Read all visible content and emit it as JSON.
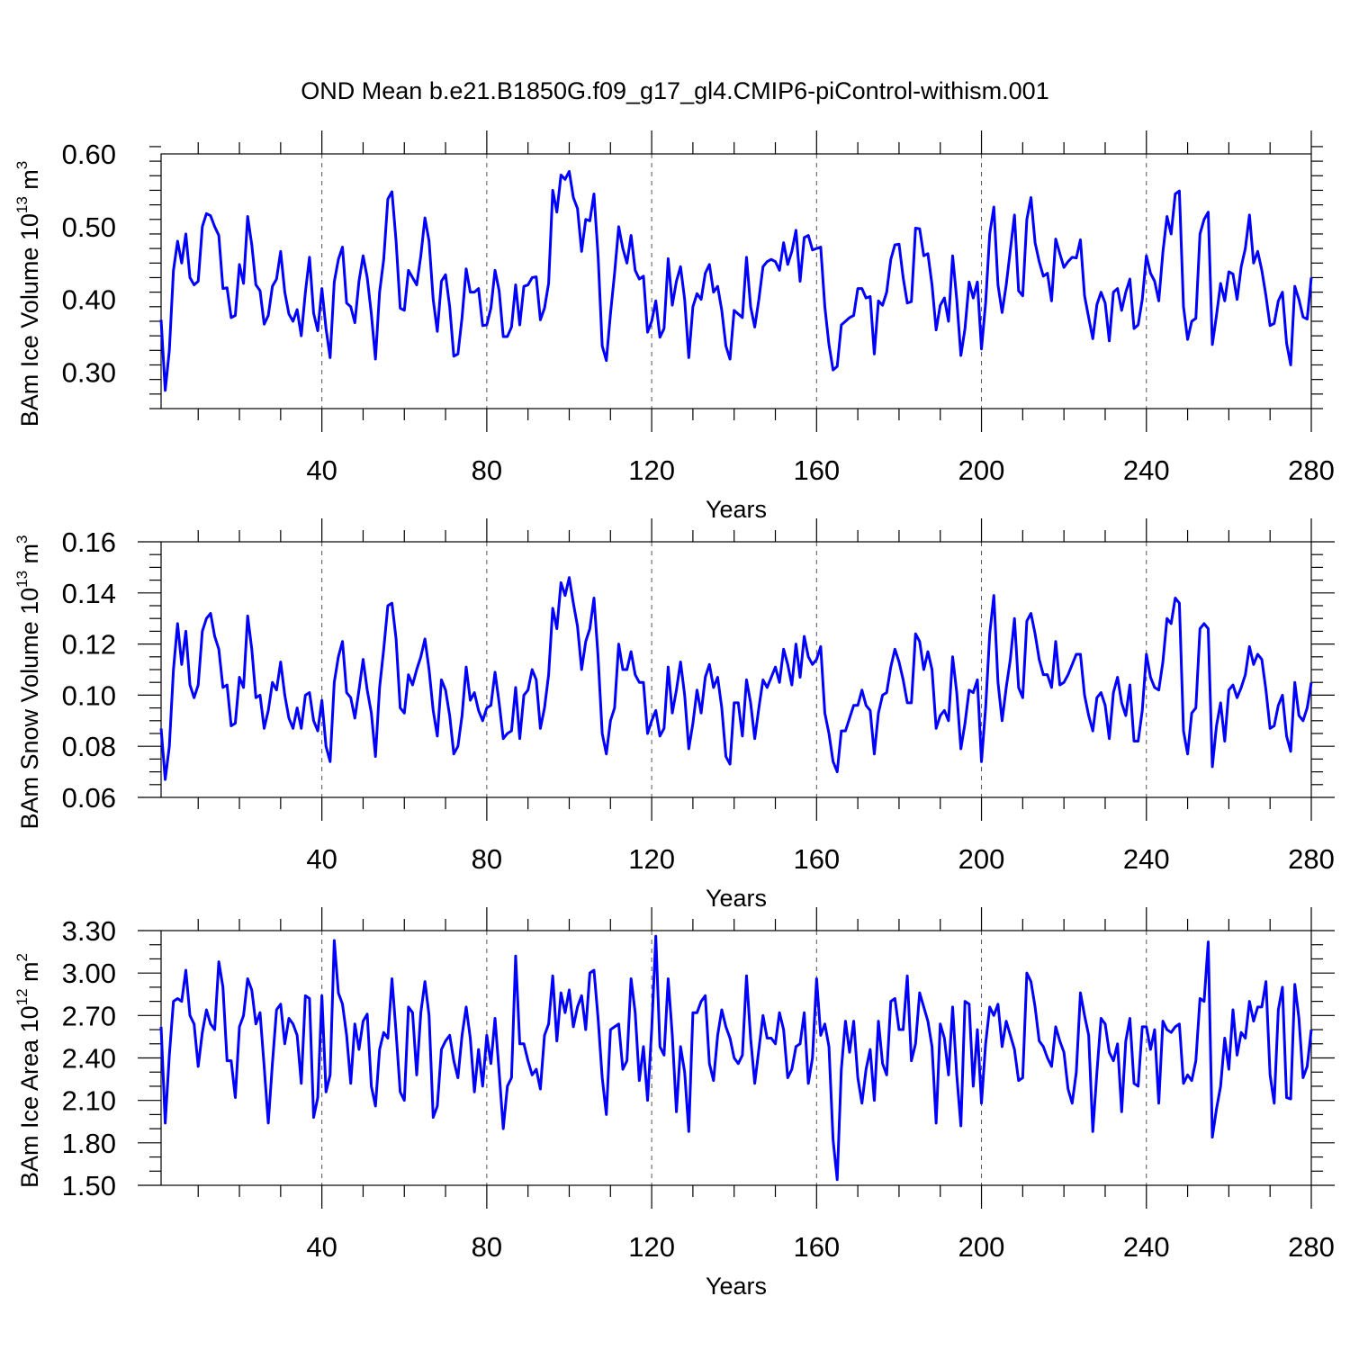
{
  "title": "OND Mean b.e21.B1850G.f09_g17_gl4.CMIP6-piControl-withism.001",
  "chart_data": [
    {
      "type": "line",
      "ylabel_main": "BAm Ice Volume 10",
      "ylabel_exp": "13",
      "ylabel_unit": " m",
      "ylabel_unit_exp": "3",
      "xlabel": "Years",
      "xlim": [
        1,
        280
      ],
      "ylim": [
        0.25,
        0.6
      ],
      "xticks": [
        40,
        80,
        120,
        160,
        200,
        240,
        280
      ],
      "xtick_labels": [
        "40",
        "80",
        "120",
        "160",
        "200",
        "240",
        "280"
      ],
      "yticks": [
        0.3,
        0.4,
        0.5,
        0.6
      ],
      "ytick_labels": [
        "0.30",
        "0.40",
        "0.50",
        "0.60"
      ],
      "yminor": 0.02,
      "grid": "vertical dashed at major x ticks",
      "line_color": "#0000ff",
      "series": [
        {
          "values": [
            0.372,
            0.275,
            0.33,
            0.44,
            0.48,
            0.45,
            0.49,
            0.43,
            0.42,
            0.425,
            0.5,
            0.518,
            0.515,
            0.5,
            0.488,
            0.415,
            0.416,
            0.375,
            0.378,
            0.448,
            0.422,
            0.514,
            0.475,
            0.42,
            0.412,
            0.366,
            0.378,
            0.418,
            0.428,
            0.466,
            0.41,
            0.38,
            0.37,
            0.386,
            0.35,
            0.41,
            0.458,
            0.381,
            0.357,
            0.415,
            0.36,
            0.32,
            0.424,
            0.455,
            0.472,
            0.395,
            0.39,
            0.368,
            0.425,
            0.46,
            0.43,
            0.38,
            0.318,
            0.41,
            0.455,
            0.538,
            0.548,
            0.48,
            0.388,
            0.385,
            0.44,
            0.43,
            0.42,
            0.46,
            0.512,
            0.48,
            0.4,
            0.356,
            0.425,
            0.434,
            0.39,
            0.322,
            0.325,
            0.375,
            0.442,
            0.41,
            0.41,
            0.415,
            0.364,
            0.365,
            0.388,
            0.44,
            0.412,
            0.349,
            0.349,
            0.362,
            0.42,
            0.365,
            0.418,
            0.42,
            0.43,
            0.431,
            0.372,
            0.388,
            0.422,
            0.55,
            0.52,
            0.571,
            0.565,
            0.576,
            0.54,
            0.525,
            0.466,
            0.51,
            0.508,
            0.545,
            0.46,
            0.336,
            0.316,
            0.38,
            0.436,
            0.5,
            0.47,
            0.45,
            0.488,
            0.44,
            0.428,
            0.432,
            0.355,
            0.37,
            0.398,
            0.348,
            0.36,
            0.456,
            0.392,
            0.425,
            0.445,
            0.4,
            0.32,
            0.39,
            0.408,
            0.4,
            0.436,
            0.448,
            0.41,
            0.418,
            0.385,
            0.336,
            0.318,
            0.385,
            0.38,
            0.375,
            0.458,
            0.39,
            0.362,
            0.4,
            0.445,
            0.452,
            0.455,
            0.452,
            0.44,
            0.478,
            0.448,
            0.466,
            0.495,
            0.425,
            0.485,
            0.488,
            0.468,
            0.47,
            0.472,
            0.39,
            0.338,
            0.303,
            0.308,
            0.365,
            0.37,
            0.375,
            0.378,
            0.415,
            0.415,
            0.402,
            0.404,
            0.325,
            0.398,
            0.392,
            0.41,
            0.455,
            0.475,
            0.476,
            0.43,
            0.395,
            0.397,
            0.498,
            0.497,
            0.46,
            0.463,
            0.42,
            0.358,
            0.392,
            0.402,
            0.37,
            0.46,
            0.4,
            0.323,
            0.36,
            0.424,
            0.402,
            0.424,
            0.332,
            0.395,
            0.49,
            0.527,
            0.42,
            0.382,
            0.42,
            0.468,
            0.516,
            0.412,
            0.405,
            0.51,
            0.54,
            0.478,
            0.452,
            0.432,
            0.436,
            0.398,
            0.483,
            0.463,
            0.444,
            0.452,
            0.458,
            0.457,
            0.482,
            0.405,
            0.375,
            0.346,
            0.393,
            0.41,
            0.395,
            0.343,
            0.41,
            0.415,
            0.385,
            0.41,
            0.428,
            0.36,
            0.365,
            0.4,
            0.46,
            0.436,
            0.425,
            0.398,
            0.465,
            0.514,
            0.49,
            0.545,
            0.549,
            0.39,
            0.345,
            0.37,
            0.374,
            0.49,
            0.51,
            0.52,
            0.338,
            0.378,
            0.422,
            0.398,
            0.438,
            0.435,
            0.4,
            0.445,
            0.47,
            0.516,
            0.45,
            0.466,
            0.44,
            0.405,
            0.364,
            0.367,
            0.398,
            0.41,
            0.34,
            0.31,
            0.418,
            0.4,
            0.376,
            0.373,
            0.43
          ]
        }
      ]
    },
    {
      "type": "line",
      "ylabel_main": "BAm Snow Volume 10",
      "ylabel_exp": "13",
      "ylabel_unit": " m",
      "ylabel_unit_exp": "3",
      "xlabel": "Years",
      "xlim": [
        1,
        280
      ],
      "ylim": [
        0.06,
        0.16
      ],
      "xticks": [
        40,
        80,
        120,
        160,
        200,
        240,
        280
      ],
      "xtick_labels": [
        "40",
        "80",
        "120",
        "160",
        "200",
        "240",
        "280"
      ],
      "yticks": [
        0.06,
        0.08,
        0.1,
        0.12,
        0.14,
        0.16
      ],
      "ytick_labels": [
        "0.06",
        "0.08",
        "0.10",
        "0.12",
        "0.14",
        "0.16"
      ],
      "yminor": 0.005,
      "grid": "vertical dashed at major x ticks",
      "line_color": "#0000ff",
      "series": [
        {
          "values": [
            0.087,
            0.067,
            0.08,
            0.11,
            0.128,
            0.112,
            0.125,
            0.104,
            0.099,
            0.104,
            0.125,
            0.13,
            0.132,
            0.123,
            0.118,
            0.103,
            0.104,
            0.088,
            0.089,
            0.107,
            0.103,
            0.131,
            0.118,
            0.099,
            0.1,
            0.087,
            0.094,
            0.105,
            0.102,
            0.113,
            0.1,
            0.091,
            0.087,
            0.095,
            0.087,
            0.1,
            0.101,
            0.09,
            0.086,
            0.098,
            0.08,
            0.074,
            0.105,
            0.115,
            0.121,
            0.101,
            0.099,
            0.091,
            0.102,
            0.114,
            0.102,
            0.093,
            0.076,
            0.103,
            0.118,
            0.135,
            0.136,
            0.122,
            0.095,
            0.093,
            0.108,
            0.104,
            0.11,
            0.115,
            0.122,
            0.11,
            0.094,
            0.084,
            0.106,
            0.102,
            0.092,
            0.077,
            0.08,
            0.092,
            0.111,
            0.098,
            0.101,
            0.094,
            0.09,
            0.095,
            0.096,
            0.109,
            0.097,
            0.083,
            0.085,
            0.086,
            0.103,
            0.083,
            0.1,
            0.102,
            0.11,
            0.106,
            0.087,
            0.095,
            0.108,
            0.134,
            0.126,
            0.144,
            0.139,
            0.146,
            0.136,
            0.127,
            0.11,
            0.121,
            0.126,
            0.138,
            0.115,
            0.085,
            0.077,
            0.09,
            0.095,
            0.12,
            0.11,
            0.11,
            0.117,
            0.108,
            0.105,
            0.105,
            0.085,
            0.09,
            0.094,
            0.084,
            0.087,
            0.111,
            0.093,
            0.102,
            0.113,
            0.1,
            0.079,
            0.089,
            0.102,
            0.093,
            0.107,
            0.112,
            0.103,
            0.107,
            0.095,
            0.076,
            0.073,
            0.097,
            0.097,
            0.084,
            0.106,
            0.097,
            0.083,
            0.095,
            0.106,
            0.103,
            0.107,
            0.111,
            0.105,
            0.118,
            0.112,
            0.104,
            0.12,
            0.107,
            0.123,
            0.115,
            0.112,
            0.114,
            0.119,
            0.093,
            0.085,
            0.074,
            0.07,
            0.086,
            0.086,
            0.091,
            0.096,
            0.096,
            0.102,
            0.096,
            0.094,
            0.077,
            0.093,
            0.1,
            0.101,
            0.111,
            0.118,
            0.113,
            0.106,
            0.097,
            0.097,
            0.124,
            0.121,
            0.11,
            0.117,
            0.11,
            0.087,
            0.092,
            0.094,
            0.09,
            0.115,
            0.101,
            0.079,
            0.089,
            0.102,
            0.101,
            0.106,
            0.074,
            0.095,
            0.124,
            0.139,
            0.105,
            0.09,
            0.103,
            0.114,
            0.13,
            0.103,
            0.099,
            0.129,
            0.132,
            0.124,
            0.114,
            0.108,
            0.108,
            0.103,
            0.121,
            0.104,
            0.105,
            0.108,
            0.112,
            0.116,
            0.116,
            0.1,
            0.092,
            0.086,
            0.099,
            0.101,
            0.096,
            0.083,
            0.101,
            0.107,
            0.097,
            0.092,
            0.104,
            0.082,
            0.082,
            0.094,
            0.116,
            0.107,
            0.103,
            0.102,
            0.113,
            0.13,
            0.128,
            0.138,
            0.136,
            0.086,
            0.077,
            0.093,
            0.095,
            0.126,
            0.128,
            0.126,
            0.072,
            0.088,
            0.097,
            0.082,
            0.102,
            0.104,
            0.099,
            0.103,
            0.108,
            0.119,
            0.112,
            0.116,
            0.114,
            0.102,
            0.087,
            0.088,
            0.096,
            0.1,
            0.084,
            0.078,
            0.105,
            0.092,
            0.09,
            0.095,
            0.105
          ]
        }
      ]
    },
    {
      "type": "line",
      "ylabel_main": "BAm Ice Area 10",
      "ylabel_exp": "12",
      "ylabel_unit": " m",
      "ylabel_unit_exp": "2",
      "xlabel": "Years",
      "xlim": [
        1,
        280
      ],
      "ylim": [
        1.5,
        3.3
      ],
      "xticks": [
        40,
        80,
        120,
        160,
        200,
        240,
        280
      ],
      "xtick_labels": [
        "40",
        "80",
        "120",
        "160",
        "200",
        "240",
        "280"
      ],
      "yticks": [
        1.5,
        1.8,
        2.1,
        2.4,
        2.7,
        3.0,
        3.3
      ],
      "ytick_labels": [
        "1.50",
        "1.80",
        "2.10",
        "2.40",
        "2.70",
        "3.00",
        "3.30"
      ],
      "yminor": 0.1,
      "grid": "vertical dashed at major x ticks",
      "line_color": "#0000ff",
      "series": [
        {
          "values": [
            2.62,
            1.94,
            2.42,
            2.8,
            2.82,
            2.8,
            3.02,
            2.7,
            2.64,
            2.34,
            2.58,
            2.74,
            2.64,
            2.6,
            3.08,
            2.9,
            2.38,
            2.38,
            2.12,
            2.62,
            2.7,
            2.96,
            2.88,
            2.64,
            2.72,
            2.34,
            1.94,
            2.36,
            2.74,
            2.78,
            2.5,
            2.68,
            2.64,
            2.56,
            2.22,
            2.84,
            2.82,
            1.98,
            2.12,
            2.84,
            2.16,
            2.28,
            3.23,
            2.86,
            2.78,
            2.56,
            2.22,
            2.64,
            2.46,
            2.66,
            2.71,
            2.2,
            2.06,
            2.46,
            2.58,
            2.54,
            2.96,
            2.58,
            2.16,
            2.1,
            2.76,
            2.72,
            2.28,
            2.72,
            2.94,
            2.7,
            1.98,
            2.06,
            2.46,
            2.52,
            2.56,
            2.38,
            2.26,
            2.56,
            2.76,
            2.54,
            2.16,
            2.46,
            2.2,
            2.56,
            2.36,
            2.68,
            2.3,
            1.9,
            2.2,
            2.26,
            3.12,
            2.5,
            2.5,
            2.38,
            2.28,
            2.32,
            2.18,
            2.56,
            2.64,
            2.98,
            2.52,
            2.86,
            2.72,
            2.88,
            2.62,
            2.76,
            2.84,
            2.6,
            3.0,
            3.02,
            2.68,
            2.26,
            2.0,
            2.6,
            2.62,
            2.64,
            2.32,
            2.38,
            2.96,
            2.72,
            2.24,
            2.48,
            2.1,
            2.6,
            3.26,
            2.48,
            2.42,
            2.96,
            2.56,
            2.02,
            2.48,
            2.3,
            1.88,
            2.72,
            2.72,
            2.8,
            2.84,
            2.36,
            2.24,
            2.56,
            2.74,
            2.62,
            2.54,
            2.4,
            2.36,
            2.42,
            2.98,
            2.54,
            2.22,
            2.46,
            2.7,
            2.54,
            2.54,
            2.5,
            2.72,
            2.6,
            2.26,
            2.32,
            2.48,
            2.5,
            2.72,
            2.22,
            2.4,
            2.96,
            2.56,
            2.64,
            2.48,
            1.82,
            1.54,
            2.32,
            2.66,
            2.44,
            2.66,
            2.26,
            2.08,
            2.32,
            2.46,
            2.1,
            2.66,
            2.36,
            2.28,
            2.8,
            2.82,
            2.6,
            2.6,
            2.98,
            2.38,
            2.5,
            2.86,
            2.76,
            2.66,
            2.48,
            1.94,
            2.64,
            2.54,
            2.28,
            2.76,
            2.28,
            1.92,
            2.8,
            2.78,
            2.2,
            2.6,
            2.08,
            2.5,
            2.76,
            2.7,
            2.78,
            2.48,
            2.66,
            2.56,
            2.46,
            2.24,
            2.26,
            3.0,
            2.94,
            2.76,
            2.52,
            2.48,
            2.4,
            2.34,
            2.62,
            2.52,
            2.44,
            2.18,
            2.08,
            2.3,
            2.86,
            2.7,
            2.56,
            1.88,
            2.3,
            2.68,
            2.64,
            2.44,
            2.38,
            2.5,
            2.02,
            2.52,
            2.68,
            2.22,
            2.2,
            2.62,
            2.62,
            2.46,
            2.6,
            2.08,
            2.66,
            2.6,
            2.58,
            2.62,
            2.64,
            2.22,
            2.28,
            2.24,
            2.38,
            2.82,
            2.8,
            3.22,
            1.84,
            2.04,
            2.2,
            2.54,
            2.32,
            2.74,
            2.42,
            2.58,
            2.54,
            2.8,
            2.66,
            2.76,
            2.76,
            2.94,
            2.28,
            2.08,
            2.74,
            2.9,
            2.12,
            2.11,
            2.92,
            2.68,
            2.26,
            2.34,
            2.6
          ]
        }
      ]
    }
  ]
}
